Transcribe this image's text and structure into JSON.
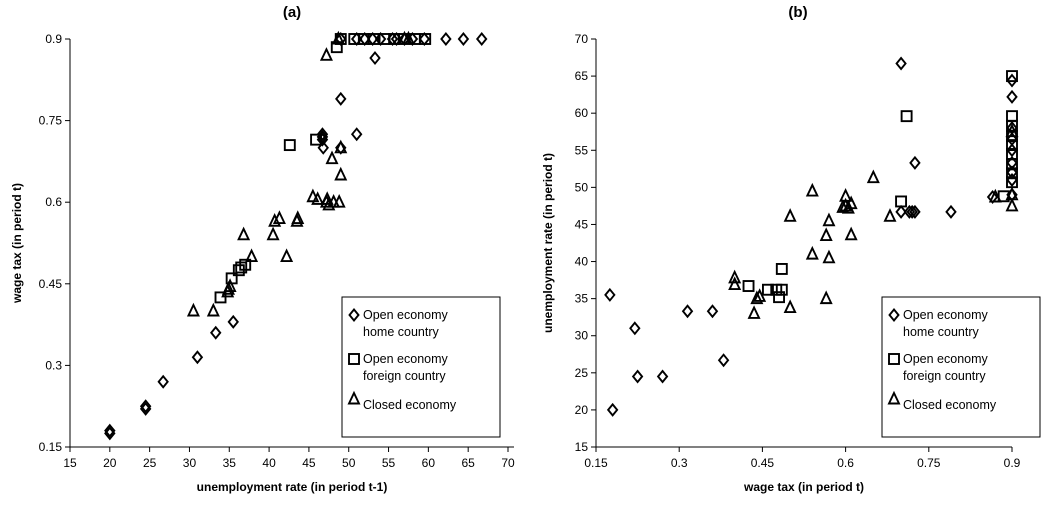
{
  "chart_data": [
    {
      "type": "scatter",
      "title": "(a)",
      "xlabel": "unemployment rate (in period t-1)",
      "ylabel": "wage tax (in period t)",
      "xlim": [
        15,
        70
      ],
      "ylim": [
        0.15,
        0.9
      ],
      "xticks": [
        "15",
        "20",
        "25",
        "30",
        "35",
        "40",
        "45",
        "50",
        "55",
        "60",
        "65",
        "70"
      ],
      "yticks": [
        "0.15",
        "0.3",
        "0.45",
        "0.6",
        "0.75",
        "0.9"
      ],
      "legend_position": "bottom-right",
      "series": [
        {
          "name": "Open economy home country",
          "marker": "diamond",
          "points": [
            [
              20,
              0.18
            ],
            [
              20,
              0.175
            ],
            [
              24.5,
              0.225
            ],
            [
              24.5,
              0.22
            ],
            [
              26.7,
              0.27
            ],
            [
              31,
              0.315
            ],
            [
              33.3,
              0.36
            ],
            [
              35.5,
              0.38
            ],
            [
              46.7,
              0.72
            ],
            [
              46.7,
              0.715
            ],
            [
              46.7,
              0.725
            ],
            [
              46.8,
              0.7
            ],
            [
              49,
              0.79
            ],
            [
              49,
              0.7
            ],
            [
              51,
              0.725
            ],
            [
              53.3,
              0.865
            ],
            [
              49,
              0.9
            ],
            [
              51,
              0.9
            ],
            [
              52,
              0.9
            ],
            [
              53,
              0.9
            ],
            [
              54,
              0.9
            ],
            [
              55.5,
              0.9
            ],
            [
              56,
              0.9
            ],
            [
              57,
              0.9
            ],
            [
              58,
              0.9
            ],
            [
              59.5,
              0.9
            ],
            [
              62.2,
              0.9
            ],
            [
              64.4,
              0.9
            ],
            [
              66.7,
              0.9
            ]
          ]
        },
        {
          "name": "Open economy foreign country",
          "marker": "square",
          "points": [
            [
              33.9,
              0.425
            ],
            [
              35.3,
              0.46
            ],
            [
              36.2,
              0.475
            ],
            [
              36.5,
              0.48
            ],
            [
              37,
              0.485
            ],
            [
              42.6,
              0.705
            ],
            [
              45.9,
              0.715
            ],
            [
              48.5,
              0.885
            ],
            [
              49,
              0.9
            ],
            [
              50.7,
              0.9
            ],
            [
              51.9,
              0.9
            ],
            [
              53.1,
              0.9
            ],
            [
              54.5,
              0.9
            ],
            [
              55.7,
              0.9
            ],
            [
              56.9,
              0.9
            ],
            [
              58.3,
              0.9
            ],
            [
              59.6,
              0.9
            ]
          ]
        },
        {
          "name": "Closed economy",
          "marker": "triangle",
          "points": [
            [
              30.5,
              0.4
            ],
            [
              33,
              0.4
            ],
            [
              34.8,
              0.435
            ],
            [
              34.9,
              0.44
            ],
            [
              35.1,
              0.445
            ],
            [
              36.8,
              0.54
            ],
            [
              37.8,
              0.5
            ],
            [
              40.5,
              0.54
            ],
            [
              40.7,
              0.565
            ],
            [
              41.3,
              0.57
            ],
            [
              42.2,
              0.5
            ],
            [
              43.5,
              0.565
            ],
            [
              43.6,
              0.57
            ],
            [
              45.5,
              0.61
            ],
            [
              46.1,
              0.605
            ],
            [
              47.2,
              0.6
            ],
            [
              47.3,
              0.605
            ],
            [
              47.5,
              0.595
            ],
            [
              48.1,
              0.6
            ],
            [
              47.9,
              0.68
            ],
            [
              48.8,
              0.6
            ],
            [
              49,
              0.65
            ],
            [
              49,
              0.7
            ],
            [
              47.2,
              0.87
            ],
            [
              48.7,
              0.9
            ],
            [
              57,
              0.9
            ],
            [
              57.5,
              0.9
            ]
          ]
        }
      ]
    },
    {
      "type": "scatter",
      "title": "(b)",
      "xlabel": "wage tax (in period t)",
      "ylabel": "unemployment rate (in period t)",
      "xlim": [
        0.15,
        0.9
      ],
      "ylim": [
        15,
        70
      ],
      "xticks": [
        "0.15",
        "0.3",
        "0.45",
        "0.6",
        "0.75",
        "0.9"
      ],
      "yticks": [
        "15",
        "20",
        "25",
        "30",
        "35",
        "40",
        "45",
        "50",
        "55",
        "60",
        "65",
        "70"
      ],
      "legend_position": "bottom-right",
      "series": [
        {
          "name": "Open economy home country",
          "marker": "diamond",
          "points": [
            [
              0.175,
              35.5
            ],
            [
              0.18,
              20
            ],
            [
              0.22,
              31
            ],
            [
              0.225,
              24.5
            ],
            [
              0.27,
              24.5
            ],
            [
              0.315,
              33.3
            ],
            [
              0.36,
              33.3
            ],
            [
              0.38,
              26.7
            ],
            [
              0.7,
              66.7
            ],
            [
              0.7,
              46.7
            ],
            [
              0.715,
              46.7
            ],
            [
              0.72,
              46.7
            ],
            [
              0.725,
              53.3
            ],
            [
              0.725,
              46.7
            ],
            [
              0.79,
              46.7
            ],
            [
              0.865,
              48.7
            ],
            [
              0.9,
              64.4
            ],
            [
              0.9,
              62.2
            ],
            [
              0.9,
              58
            ],
            [
              0.9,
              56.5
            ],
            [
              0.9,
              55
            ],
            [
              0.9,
              53.3
            ],
            [
              0.9,
              52
            ],
            [
              0.9,
              51
            ],
            [
              0.9,
              49
            ]
          ]
        },
        {
          "name": "Open economy foreign country",
          "marker": "square",
          "points": [
            [
              0.425,
              36.7
            ],
            [
              0.46,
              36.2
            ],
            [
              0.475,
              36.2
            ],
            [
              0.48,
              35.2
            ],
            [
              0.485,
              39
            ],
            [
              0.485,
              36.2
            ],
            [
              0.7,
              48.1
            ],
            [
              0.71,
              59.6
            ],
            [
              0.885,
              48.8
            ],
            [
              0.9,
              65
            ],
            [
              0.9,
              59.6
            ],
            [
              0.9,
              58.3
            ],
            [
              0.9,
              56.9
            ],
            [
              0.9,
              55.7
            ],
            [
              0.9,
              54.5
            ],
            [
              0.9,
              53.1
            ],
            [
              0.9,
              51.9
            ],
            [
              0.9,
              50.7
            ]
          ]
        },
        {
          "name": "Closed economy",
          "marker": "triangle",
          "points": [
            [
              0.4,
              37.8
            ],
            [
              0.4,
              36.9
            ],
            [
              0.435,
              33
            ],
            [
              0.44,
              35
            ],
            [
              0.445,
              35.3
            ],
            [
              0.5,
              46.1
            ],
            [
              0.5,
              33.8
            ],
            [
              0.54,
              49.5
            ],
            [
              0.54,
              41
            ],
            [
              0.565,
              43.5
            ],
            [
              0.565,
              35
            ],
            [
              0.57,
              40.5
            ],
            [
              0.57,
              45.5
            ],
            [
              0.595,
              47.3
            ],
            [
              0.6,
              48.8
            ],
            [
              0.6,
              47.5
            ],
            [
              0.605,
              47.2
            ],
            [
              0.61,
              47.8
            ],
            [
              0.61,
              43.6
            ],
            [
              0.65,
              51.3
            ],
            [
              0.68,
              46.1
            ],
            [
              0.87,
              48.7
            ],
            [
              0.9,
              57.5
            ],
            [
              0.9,
              49
            ],
            [
              0.9,
              47.5
            ]
          ]
        }
      ]
    }
  ]
}
